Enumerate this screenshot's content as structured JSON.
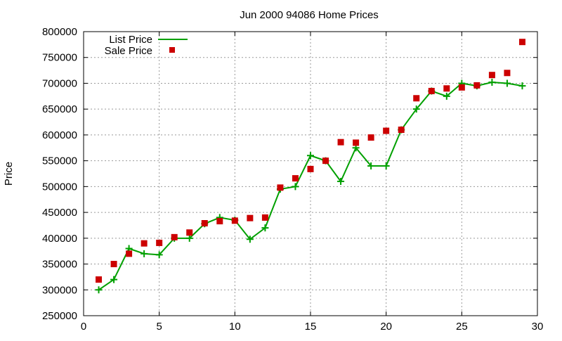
{
  "chart_data": {
    "type": "line",
    "title": "Jun 2000 94086 Home Prices",
    "xlabel": "",
    "ylabel": "Price",
    "xlim": [
      0,
      30
    ],
    "ylim": [
      250000,
      800000
    ],
    "xticks": [
      0,
      5,
      10,
      15,
      20,
      25,
      30
    ],
    "yticks": [
      250000,
      300000,
      350000,
      400000,
      450000,
      500000,
      550000,
      600000,
      650000,
      700000,
      750000,
      800000
    ],
    "grid": true,
    "legend_position": "top-left",
    "x": [
      1,
      2,
      3,
      4,
      5,
      6,
      7,
      8,
      9,
      10,
      11,
      12,
      13,
      14,
      15,
      16,
      17,
      18,
      19,
      20,
      21,
      22,
      23,
      24,
      25,
      26,
      27,
      28,
      29
    ],
    "series": [
      {
        "name": "List Price",
        "style": "linespoints",
        "color": "#00a000",
        "values": [
          300000,
          320000,
          380000,
          370000,
          368000,
          400000,
          400000,
          428000,
          440000,
          435000,
          398000,
          420000,
          495000,
          500000,
          560000,
          550000,
          510000,
          575000,
          540000,
          540000,
          610000,
          650000,
          685000,
          675000,
          700000,
          695000,
          702000,
          700000,
          695000
        ]
      },
      {
        "name": "Sale Price",
        "style": "points",
        "color": "#cc0000",
        "values": [
          320000,
          350000,
          370000,
          390000,
          391000,
          402000,
          411000,
          429000,
          433000,
          434000,
          439000,
          440000,
          498000,
          516000,
          534000,
          550000,
          586000,
          585000,
          595000,
          608000,
          610000,
          671000,
          685000,
          690000,
          692000,
          696000,
          716000,
          720000,
          780000
        ]
      }
    ]
  }
}
